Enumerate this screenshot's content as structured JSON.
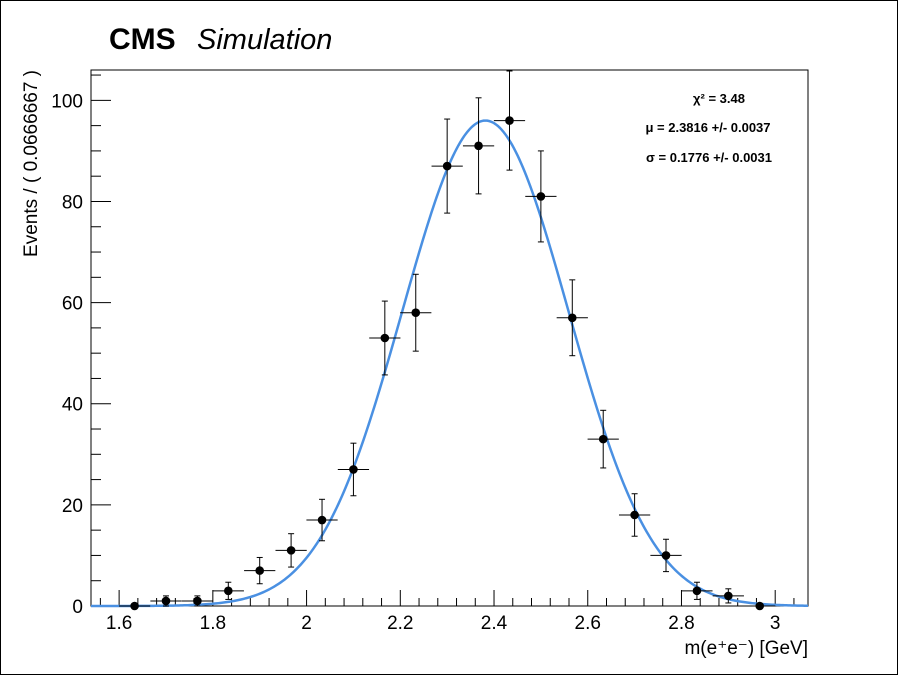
{
  "header": {
    "experiment": "CMS",
    "label": "Simulation"
  },
  "fit_box": {
    "chi2": "χ² = 3.48",
    "mu": "μ = 2.3816 +/- 0.0037",
    "sigma": "σ = 0.1776 +/- 0.0031"
  },
  "chart_data": {
    "type": "scatter",
    "xlabel": "m(e⁺e⁻) [GeV]",
    "ylabel": "Events / ( 0.0666667 )",
    "xlim": [
      1.54,
      3.07
    ],
    "ylim": [
      0,
      106
    ],
    "bin_width": 0.0666667,
    "x_ticks": [
      1.6,
      1.8,
      2.0,
      2.2,
      2.4,
      2.6,
      2.8,
      3.0
    ],
    "x_tick_labels": [
      "1.6",
      "1.8",
      "2",
      "2.2",
      "2.4",
      "2.6",
      "2.8",
      "3"
    ],
    "y_ticks": [
      0,
      20,
      40,
      60,
      80,
      100
    ],
    "y_tick_labels": [
      "0",
      "20",
      "40",
      "60",
      "80",
      "100"
    ],
    "series": [
      {
        "kind": "data-points",
        "color": "#000000",
        "x": [
          1.633,
          1.7,
          1.767,
          1.833,
          1.9,
          1.967,
          2.033,
          2.1,
          2.167,
          2.233,
          2.3,
          2.367,
          2.433,
          2.5,
          2.567,
          2.633,
          2.7,
          2.767,
          2.833,
          2.9,
          2.967
        ],
        "y": [
          0,
          1,
          1,
          3,
          7,
          11,
          17,
          27,
          53,
          58,
          87,
          91,
          96,
          81,
          57,
          33,
          18,
          10,
          3,
          2,
          0
        ],
        "yerr": [
          0,
          1.0,
          1.0,
          1.7,
          2.6,
          3.3,
          4.1,
          5.2,
          7.3,
          7.6,
          9.3,
          9.5,
          9.8,
          9.0,
          7.5,
          5.7,
          4.2,
          3.2,
          1.7,
          1.4,
          0
        ]
      },
      {
        "kind": "gaussian-fit",
        "color": "#4a90e2",
        "mu": 2.3816,
        "sigma": 0.1776,
        "amplitude": 96
      }
    ]
  }
}
